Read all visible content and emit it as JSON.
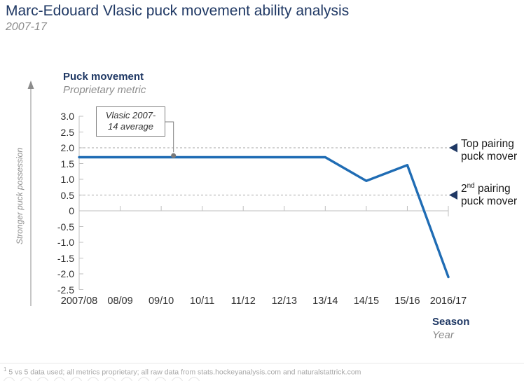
{
  "header": {
    "title": "Marc-Edouard Vlasic puck movement ability analysis",
    "subtitle": "2007-17"
  },
  "y_axis": {
    "title": "Puck movement",
    "subtitle": "Proprietary metric",
    "direction_note": "Stronger puck possession"
  },
  "x_axis": {
    "title": "Season",
    "subtitle": "Year"
  },
  "footnote": {
    "marker": "1",
    "text": " 5 vs 5 data used; all metrics proprietary; all raw data from stats.hockeyanalysis.com and naturalstattrick.com"
  },
  "chart_data": {
    "type": "line",
    "title": "Marc-Edouard Vlasic puck movement ability analysis",
    "subtitle": "2007-17",
    "categories": [
      "2007/08",
      "08/09",
      "09/10",
      "10/11",
      "11/12",
      "12/13",
      "13/14",
      "14/15",
      "15/16",
      "2016/17"
    ],
    "series": [
      {
        "name": "Vlasic puck movement",
        "values": [
          1.7,
          1.7,
          1.7,
          1.7,
          1.7,
          1.7,
          1.7,
          0.95,
          1.45,
          -2.1
        ]
      }
    ],
    "xlabel": "Season (Year)",
    "ylabel": "Puck movement (Proprietary metric)",
    "ylim": [
      -2.5,
      3.0
    ],
    "ytick_step": 0.5,
    "grid": "none (dashed reference lines only)",
    "legend": "none",
    "reference_lines": [
      {
        "value": 2.0,
        "label": "Top pairing puck mover",
        "label_line1": "Top pairing",
        "label_line2": "puck mover"
      },
      {
        "value": 0.5,
        "label": "2nd pairing puck mover",
        "label_line1_num": "2",
        "label_line1_sup": "nd",
        "label_line1_rest": " pairing",
        "label_line2": "puck mover"
      }
    ],
    "annotation": {
      "label": "Vlasic 2007-14 average",
      "line1": "Vlasic 2007-",
      "line2": "14 average",
      "value": 1.75,
      "x_index": 2.3
    },
    "colors": {
      "line": "#1F6CB4",
      "title_navy": "#1F3864",
      "arrow_navy": "#1F3864",
      "axis_gray": "#BFBFBF",
      "reference_dash_gray": "#A6A6A6",
      "muted_text_gray": "#8C8C8C"
    }
  }
}
